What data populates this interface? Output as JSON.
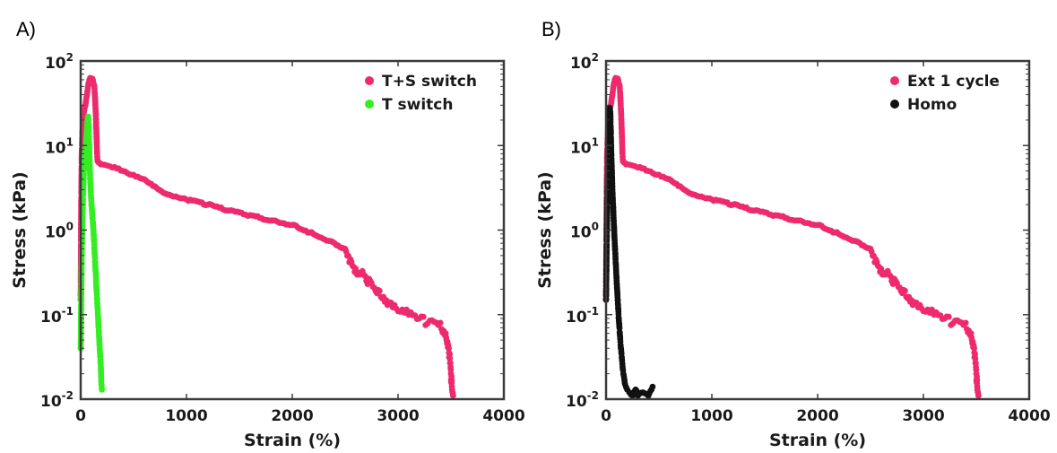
{
  "chart_data": [
    {
      "panel_label": "A)",
      "type": "scatter",
      "xlabel": "Strain (%)",
      "ylabel": "Stress (kPa)",
      "xlim": [
        0,
        4000
      ],
      "ylim": [
        0.01,
        100
      ],
      "yscale": "log",
      "x_ticks": [
        "0",
        "1000",
        "2000",
        "3000",
        "4000"
      ],
      "y_ticks": [
        {
          "base": "10",
          "exp": "-2"
        },
        {
          "base": "10",
          "exp": "-1"
        },
        {
          "base": "10",
          "exp": "0"
        },
        {
          "base": "10",
          "exp": "1"
        },
        {
          "base": "10",
          "exp": "2"
        }
      ],
      "legend_position": "top-right",
      "series": [
        {
          "name": "T+S switch",
          "color": "#ee2a6f",
          "x": [
            0,
            2,
            5,
            10,
            20,
            30,
            45,
            60,
            75,
            90,
            110,
            130,
            145,
            155,
            160,
            170,
            180,
            190,
            200,
            250,
            300,
            400,
            500,
            600,
            700,
            800,
            900,
            1000,
            1200,
            1400,
            1600,
            1800,
            2000,
            2200,
            2400,
            2500,
            2550,
            2600,
            2700,
            2800,
            2900,
            3000,
            3100,
            3200,
            3300,
            3400,
            3450,
            3480,
            3500,
            3510,
            3520
          ],
          "y": [
            0.15,
            0.5,
            2,
            8,
            18,
            25,
            30,
            40,
            55,
            63,
            62,
            50,
            20,
            8,
            6.5,
            6.3,
            6.2,
            6.0,
            6.0,
            5.8,
            5.5,
            5.0,
            4.5,
            4.0,
            3.3,
            2.7,
            2.5,
            2.3,
            2.0,
            1.7,
            1.5,
            1.3,
            1.15,
            0.9,
            0.7,
            0.6,
            0.45,
            0.35,
            0.25,
            0.18,
            0.13,
            0.11,
            0.1,
            0.09,
            0.085,
            0.08,
            0.06,
            0.04,
            0.02,
            0.013,
            0.011
          ]
        },
        {
          "name": "T switch",
          "color": "#33ee22",
          "x": [
            0,
            5,
            10,
            20,
            30,
            40,
            50,
            60,
            65,
            70,
            75,
            80,
            85,
            90,
            95,
            100,
            110,
            120,
            130,
            140,
            150,
            160,
            170,
            180,
            190,
            195,
            200
          ],
          "y": [
            0.04,
            0.15,
            0.5,
            2,
            5,
            8,
            10,
            15,
            20,
            22,
            18,
            10,
            6,
            4,
            3,
            2.2,
            1.5,
            1.0,
            0.6,
            0.35,
            0.2,
            0.12,
            0.07,
            0.04,
            0.025,
            0.016,
            0.013
          ]
        }
      ]
    },
    {
      "panel_label": "B)",
      "type": "scatter",
      "xlabel": "Strain (%)",
      "ylabel": "Stress (kPa)",
      "xlim": [
        0,
        4000
      ],
      "ylim": [
        0.01,
        100
      ],
      "yscale": "log",
      "x_ticks": [
        "0",
        "1000",
        "2000",
        "3000",
        "4000"
      ],
      "y_ticks": [
        {
          "base": "10",
          "exp": "-2"
        },
        {
          "base": "10",
          "exp": "-1"
        },
        {
          "base": "10",
          "exp": "0"
        },
        {
          "base": "10",
          "exp": "1"
        },
        {
          "base": "10",
          "exp": "2"
        }
      ],
      "legend_position": "top-right",
      "series": [
        {
          "name": "Ext 1 cycle",
          "color": "#ee2a6f",
          "x": [
            0,
            2,
            5,
            10,
            20,
            30,
            45,
            60,
            75,
            90,
            110,
            130,
            145,
            155,
            160,
            170,
            180,
            190,
            200,
            250,
            300,
            400,
            500,
            600,
            700,
            800,
            900,
            1000,
            1200,
            1400,
            1600,
            1800,
            2000,
            2200,
            2400,
            2500,
            2550,
            2600,
            2700,
            2800,
            2900,
            3000,
            3100,
            3200,
            3300,
            3400,
            3450,
            3480,
            3500,
            3510,
            3520
          ],
          "y": [
            0.15,
            0.5,
            2,
            8,
            18,
            25,
            30,
            40,
            55,
            63,
            62,
            50,
            20,
            8,
            6.5,
            6.3,
            6.2,
            6.0,
            6.0,
            5.8,
            5.5,
            5.0,
            4.5,
            4.0,
            3.3,
            2.7,
            2.5,
            2.3,
            2.0,
            1.7,
            1.5,
            1.3,
            1.15,
            0.9,
            0.7,
            0.6,
            0.45,
            0.35,
            0.25,
            0.18,
            0.13,
            0.11,
            0.1,
            0.09,
            0.085,
            0.08,
            0.06,
            0.04,
            0.02,
            0.013,
            0.011
          ]
        },
        {
          "name": "Homo",
          "color": "#111111",
          "x": [
            0,
            5,
            10,
            15,
            20,
            25,
            30,
            35,
            40,
            45,
            50,
            55,
            60,
            70,
            80,
            90,
            100,
            110,
            120,
            130,
            140,
            150,
            160,
            170,
            180,
            200,
            220,
            250,
            280,
            300,
            350,
            400,
            430,
            440
          ],
          "y": [
            0.15,
            0.5,
            1.5,
            4,
            8,
            12,
            20,
            28,
            25,
            15,
            8,
            5,
            3,
            1.5,
            0.8,
            0.45,
            0.25,
            0.15,
            0.09,
            0.06,
            0.04,
            0.03,
            0.022,
            0.018,
            0.015,
            0.013,
            0.012,
            0.011,
            0.013,
            0.011,
            0.012,
            0.011,
            0.013,
            0.014
          ]
        }
      ]
    }
  ]
}
